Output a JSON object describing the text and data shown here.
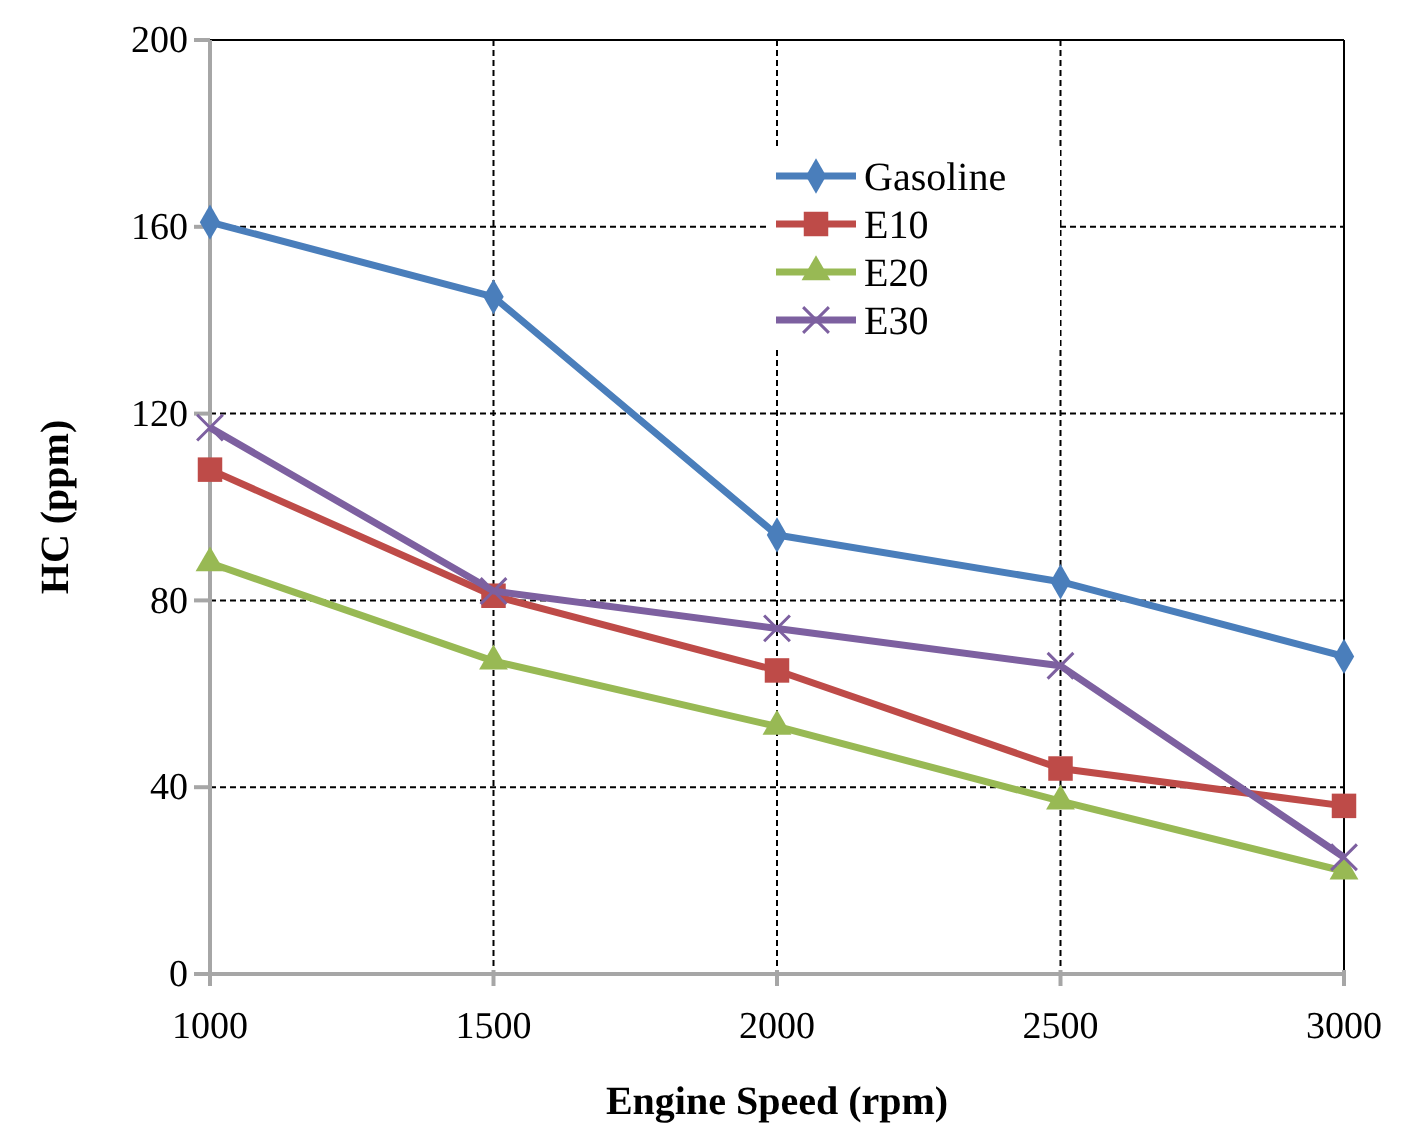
{
  "chart_data": {
    "type": "line",
    "xlabel": "Engine Speed (rpm)",
    "ylabel": "HC (ppm)",
    "x": [
      1000,
      1500,
      2000,
      2500,
      3000
    ],
    "xlim": [
      1000,
      3000
    ],
    "xticks": [
      1000,
      1500,
      2000,
      2500,
      3000
    ],
    "ylim": [
      0,
      200
    ],
    "yticks": [
      0,
      40,
      80,
      120,
      160,
      200
    ],
    "grid": true,
    "legend": "top right",
    "series": [
      {
        "name": "Gasoline",
        "color": "#4a7ebb",
        "marker": "diamond",
        "values": [
          161,
          145,
          94,
          84,
          68
        ]
      },
      {
        "name": "E10",
        "color": "#be4b48",
        "marker": "square",
        "values": [
          108,
          81,
          65,
          44,
          36
        ]
      },
      {
        "name": "E20",
        "color": "#98b954",
        "marker": "triangle",
        "values": [
          88,
          67,
          53,
          37,
          22
        ]
      },
      {
        "name": "E30",
        "color": "#7d60a0",
        "marker": "cross",
        "values": [
          117,
          82,
          74,
          66,
          25
        ]
      }
    ]
  }
}
